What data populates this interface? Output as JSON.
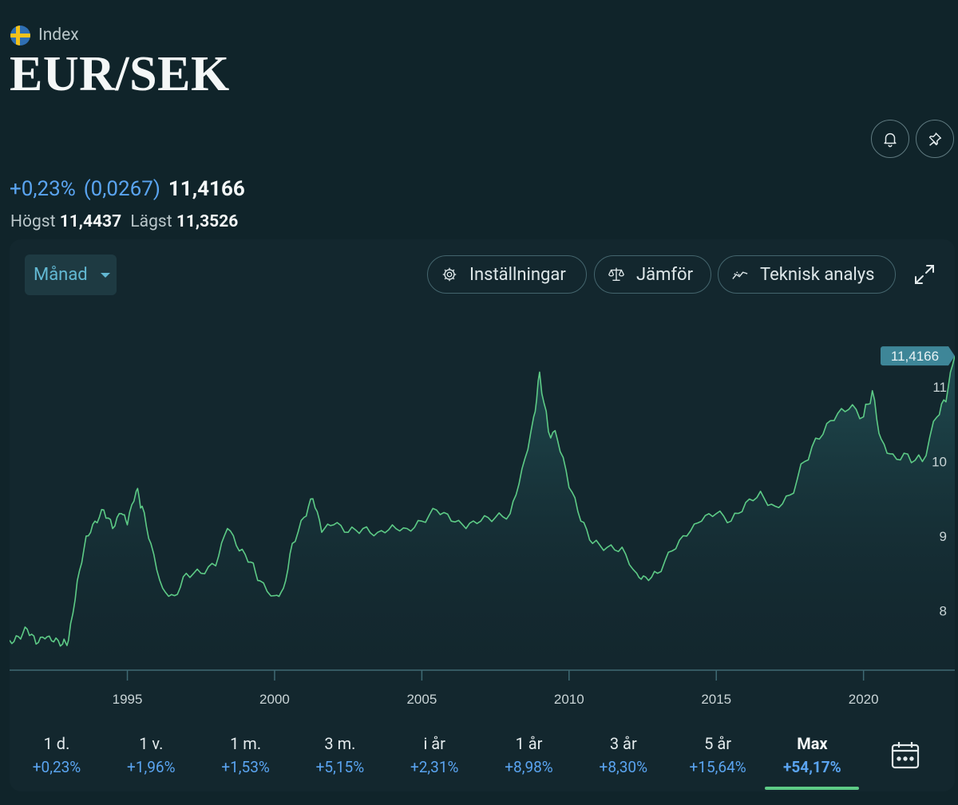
{
  "header": {
    "type_label": "Index",
    "title": "EUR/SEK"
  },
  "quote": {
    "change_pct": "+0,23%",
    "change_abs": "(0,0267)",
    "last": "11,4166",
    "high_label": "Högst",
    "high_value": "11,4437",
    "low_label": "Lägst",
    "low_value": "11,3526"
  },
  "toolbar": {
    "period_label": "Månad",
    "settings_label": "Inställningar",
    "compare_label": "Jämför",
    "ta_label": "Teknisk analys"
  },
  "icons": {
    "flag": "sweden-flag-icon",
    "alert": "bell-icon",
    "pin": "pin-icon",
    "settings": "gear-icon",
    "compare": "scale-icon",
    "ta": "trend-line-icon",
    "expand": "expand-icon",
    "calendar": "calendar-icon"
  },
  "colors": {
    "line": "#5dcb86",
    "accent_blue": "#5aa4f0",
    "last_badge": "#3e8698"
  },
  "timeframes": [
    {
      "label": "1 d.",
      "pct": "+0,23%"
    },
    {
      "label": "1 v.",
      "pct": "+1,96%"
    },
    {
      "label": "1 m.",
      "pct": "+1,53%"
    },
    {
      "label": "3 m.",
      "pct": "+5,15%"
    },
    {
      "label": "i år",
      "pct": "+2,31%"
    },
    {
      "label": "1 år",
      "pct": "+8,98%"
    },
    {
      "label": "3 år",
      "pct": "+8,30%"
    },
    {
      "label": "5 år",
      "pct": "+15,64%"
    },
    {
      "label": "Max",
      "pct": "+54,17%",
      "active": true
    }
  ],
  "chart_data": {
    "type": "line",
    "title": "EUR/SEK",
    "interval": "Månad",
    "last_label": "11,4166",
    "last_value": 11.4166,
    "ylim": [
      7.2,
      11.75
    ],
    "xlim": [
      1991.0,
      2023.1
    ],
    "yticks": [
      8,
      9,
      10,
      11
    ],
    "ytick_labels": [
      "8",
      "9",
      "10",
      "11"
    ],
    "xticks": [
      1995,
      2000,
      2005,
      2010,
      2015,
      2020
    ],
    "xtick_labels": [
      "1995",
      "2000",
      "2005",
      "2010",
      "2015",
      "2020"
    ],
    "series": [
      {
        "name": "EUR/SEK",
        "x": [
          1991.0,
          1991.3,
          1991.6,
          1991.9,
          1992.2,
          1992.5,
          1992.8,
          1993.0,
          1993.3,
          1993.6,
          1993.9,
          1994.2,
          1994.5,
          1994.8,
          1995.0,
          1995.3,
          1995.5,
          1995.8,
          1996.2,
          1996.6,
          1997.0,
          1997.5,
          1998.0,
          1998.4,
          1998.8,
          1999.2,
          1999.5,
          2000.0,
          2000.3,
          2000.6,
          2001.0,
          2001.3,
          2001.6,
          2002.0,
          2002.5,
          2003.0,
          2003.5,
          2004.0,
          2004.5,
          2005.0,
          2005.5,
          2006.0,
          2006.5,
          2007.0,
          2007.5,
          2008.0,
          2008.4,
          2008.8,
          2009.0,
          2009.3,
          2009.6,
          2010.0,
          2010.4,
          2010.8,
          2011.3,
          2011.8,
          2012.3,
          2012.6,
          2013.0,
          2013.5,
          2014.0,
          2014.5,
          2015.0,
          2015.5,
          2016.0,
          2016.5,
          2017.0,
          2017.5,
          2018.0,
          2018.5,
          2019.0,
          2019.5,
          2020.0,
          2020.3,
          2020.6,
          2021.0,
          2021.5,
          2022.0,
          2022.5,
          2022.8,
          2023.1
        ],
        "values": [
          7.6,
          7.65,
          7.75,
          7.55,
          7.62,
          7.58,
          7.55,
          7.6,
          8.4,
          9.0,
          9.2,
          9.35,
          9.1,
          9.3,
          9.15,
          9.6,
          9.4,
          8.9,
          8.3,
          8.2,
          8.5,
          8.5,
          8.6,
          9.1,
          8.8,
          8.65,
          8.4,
          8.2,
          8.3,
          8.9,
          9.25,
          9.5,
          9.05,
          9.15,
          9.05,
          9.1,
          9.05,
          9.15,
          9.1,
          9.2,
          9.35,
          9.2,
          9.1,
          9.2,
          9.25,
          9.3,
          9.9,
          10.6,
          11.2,
          10.4,
          10.3,
          9.65,
          9.2,
          8.9,
          8.85,
          8.85,
          8.5,
          8.45,
          8.5,
          8.8,
          9.0,
          9.2,
          9.3,
          9.2,
          9.45,
          9.6,
          9.4,
          9.55,
          10.0,
          10.3,
          10.55,
          10.7,
          10.6,
          10.95,
          10.3,
          10.1,
          10.1,
          10.0,
          10.6,
          10.8,
          11.4166
        ]
      }
    ]
  }
}
